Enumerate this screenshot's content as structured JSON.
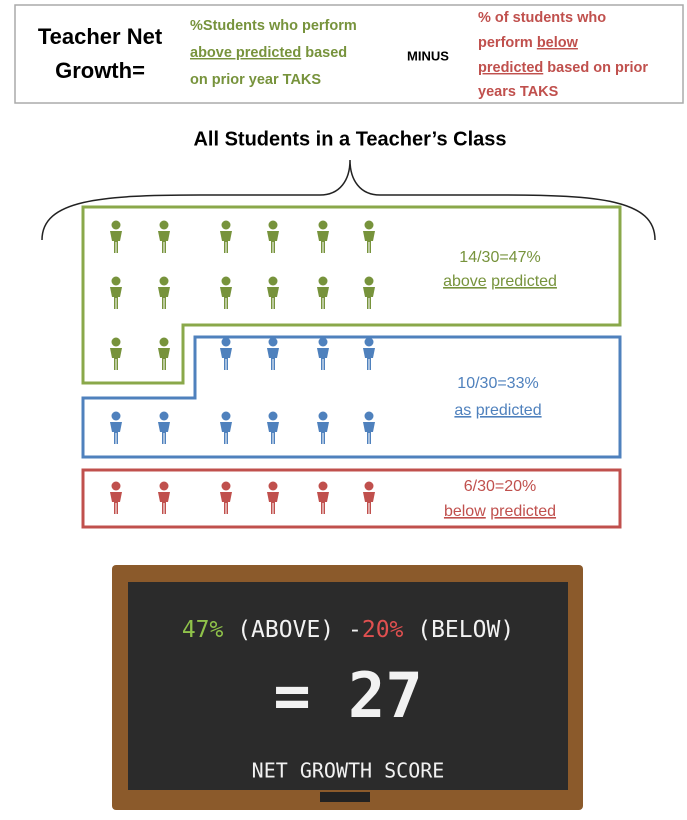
{
  "header": {
    "label": [
      "Teacher Net",
      "Growth="
    ],
    "above_text": [
      [
        "%Students who perform"
      ],
      [
        "above predicted",
        " based"
      ],
      [
        "on prior year TAKS"
      ]
    ],
    "operator": "MINUS",
    "below_text": [
      [
        "% of students who"
      ],
      [
        "perform ",
        "below"
      ],
      [
        "predicted",
        " based on prior"
      ],
      [
        "years TAKS"
      ]
    ]
  },
  "title": "All Students in a Teacher’s Class",
  "groups": [
    {
      "ratio": "14/30=47%",
      "caption": [
        "above",
        "predicted"
      ]
    },
    {
      "ratio": "10/30=33%",
      "caption": [
        "as",
        "predicted"
      ]
    },
    {
      "ratio": "6/30=20%",
      "caption": [
        "below",
        "predicted"
      ]
    }
  ],
  "chalkboard": {
    "line1": [
      "47%",
      " (ABOVE) -",
      "20%",
      " (BELOW)"
    ],
    "result": "= 27",
    "caption": "NET GROWTH SCORE"
  }
}
